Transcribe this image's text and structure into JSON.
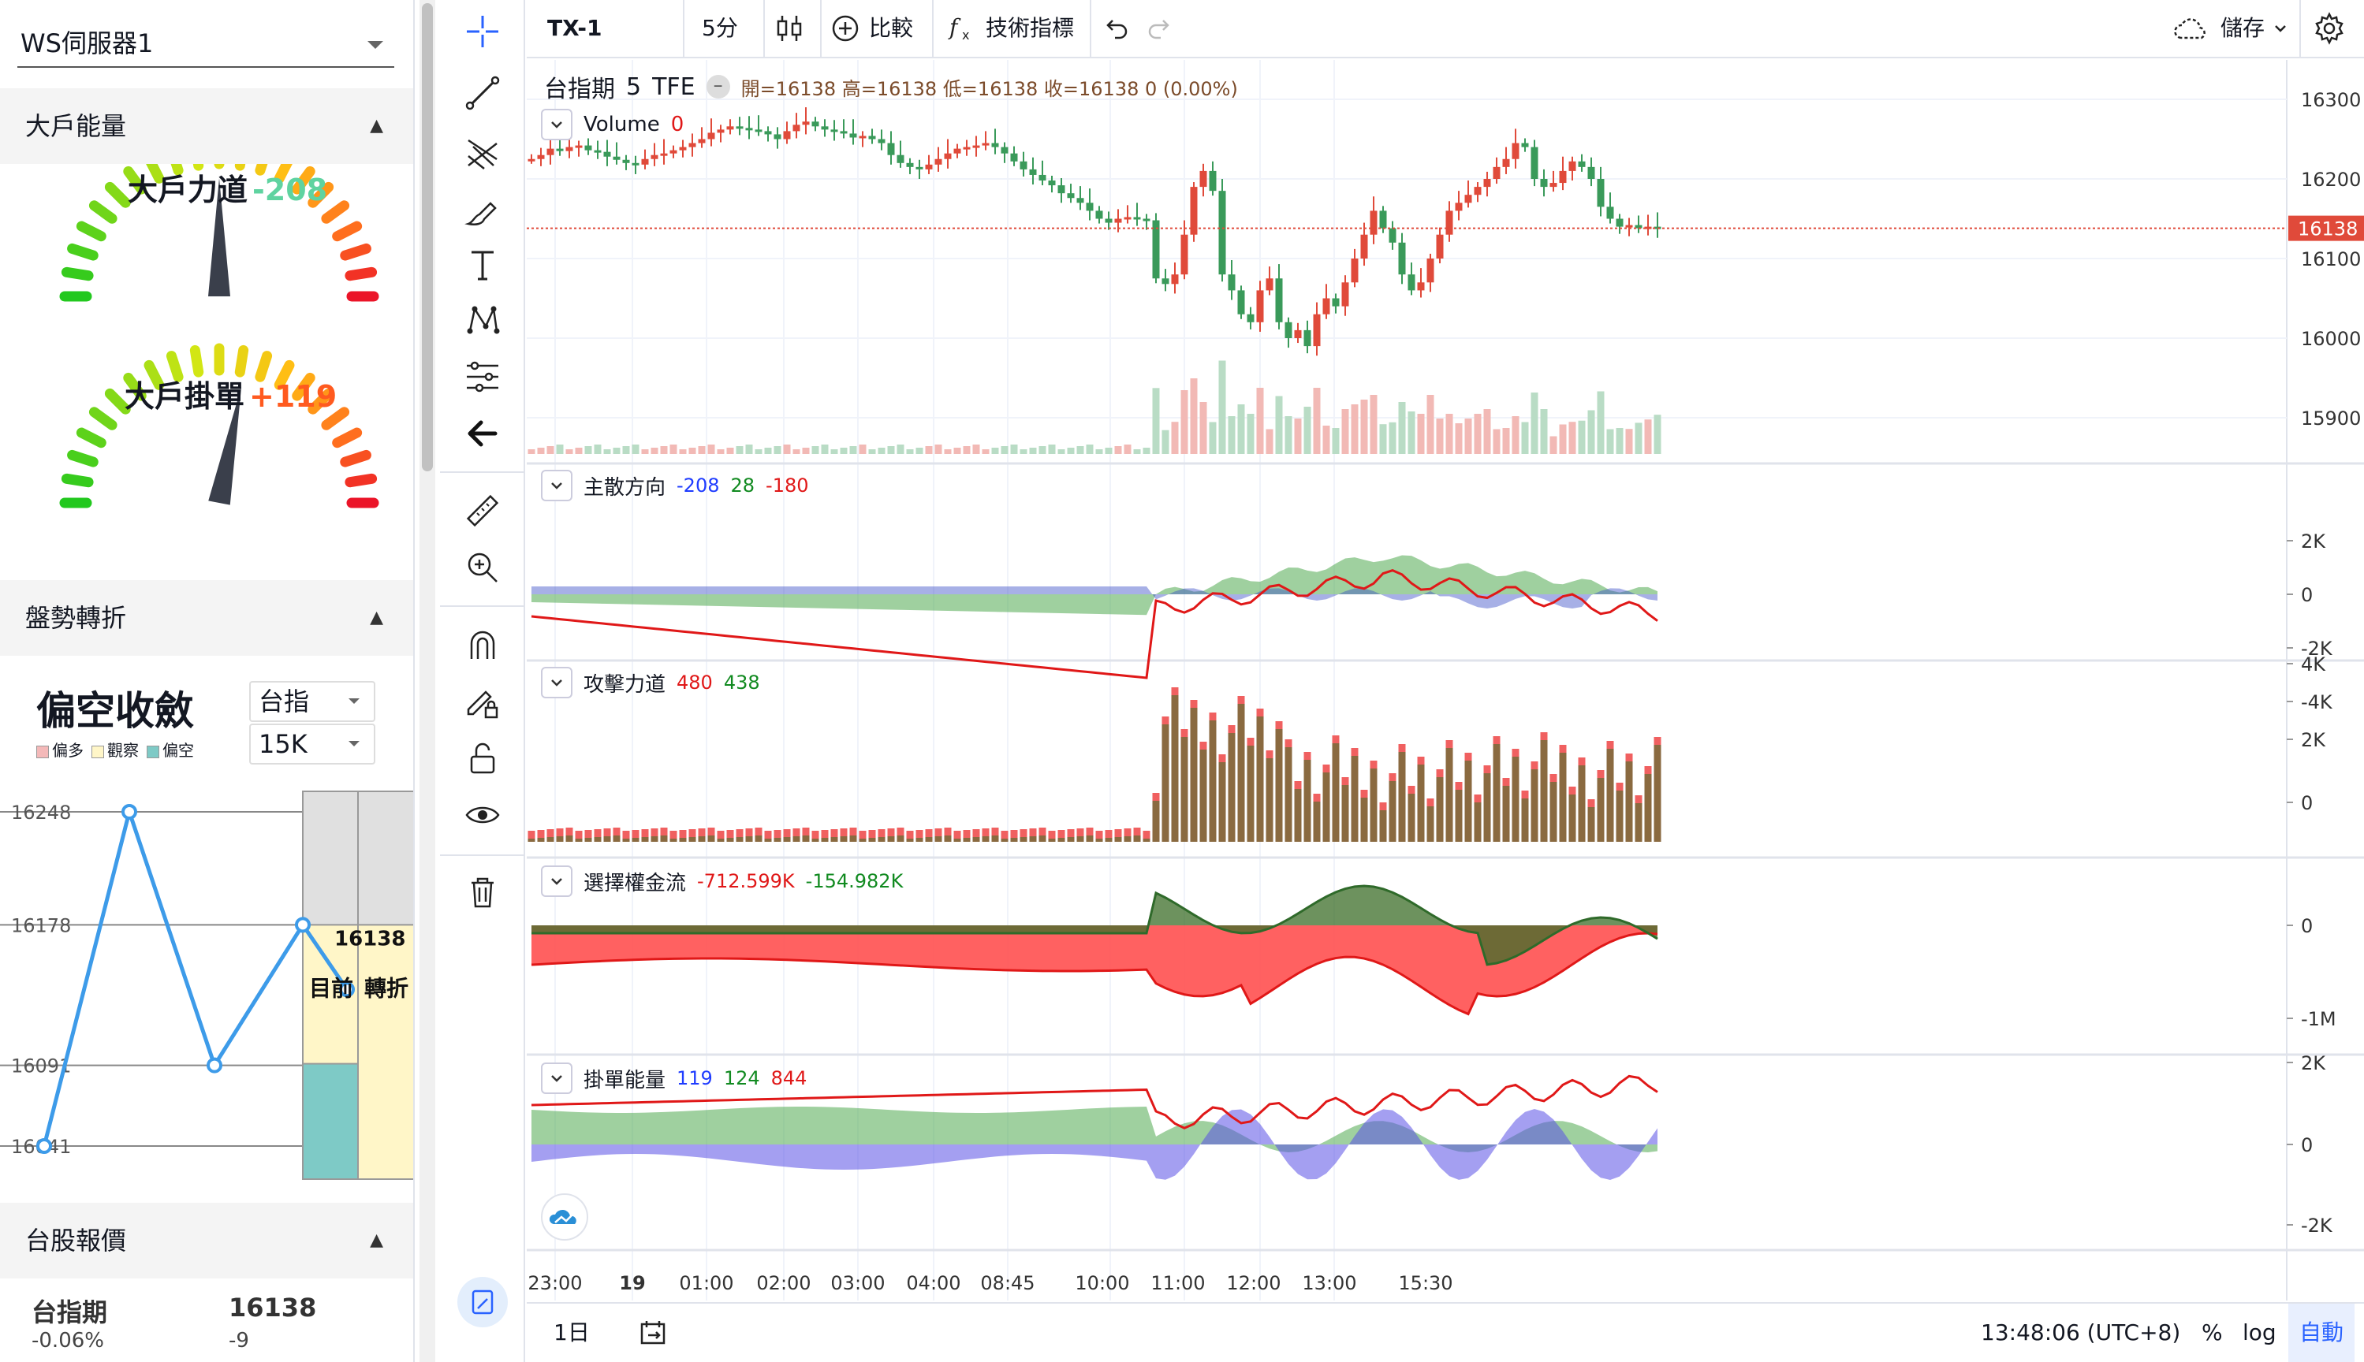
{
  "left_panel": {
    "server_select": "WS伺服器1",
    "section_big_player": "大戶能量",
    "gauge1": {
      "label": "大戶力道",
      "value": "-208",
      "value_color": "#5fd3a0",
      "needle_level": 0.5
    },
    "gauge2": {
      "label": "大戶掛單",
      "value": "+119",
      "value_color": "#ff5a1f",
      "needle_level": 0.56
    },
    "section_turning": "盤勢轉折",
    "bias_title": "偏空收斂",
    "legend": [
      {
        "label": "偏多",
        "color": "#f4b9b9"
      },
      {
        "label": "觀察",
        "color": "#fff6c8"
      },
      {
        "label": "偏空",
        "color": "#7ecac6"
      }
    ],
    "select_index": "台指",
    "select_amount": "15K",
    "turning_chart": {
      "y_ticks": [
        "16248",
        "16178",
        "16091",
        "16041"
      ],
      "points": [
        16041,
        16248,
        16091,
        16178,
        16138
      ],
      "current_price": "16138",
      "current_label": "目前",
      "turning_label": "轉折",
      "line_color": "#3d9be9"
    },
    "section_quote": "台股報價",
    "quote": {
      "name": "台指期",
      "change_pct": "-0.06%",
      "price": "16138",
      "diff": "-9"
    }
  },
  "toolbar": {
    "symbol": "TX-1",
    "interval": "5分",
    "compare_label": "比較",
    "indicators_label": "技術指標",
    "save_label": "儲存",
    "icons": [
      "candles-icon",
      "plus-circle-icon",
      "fx-icon",
      "undo-icon",
      "redo-icon",
      "cloud-icon",
      "gear-icon"
    ]
  },
  "drawing_tools": [
    "crosshair-icon",
    "trendline-icon",
    "pitchfork-icon",
    "brush-icon",
    "text-icon",
    "pattern-icon",
    "measure-lines-icon",
    "back-arrow-icon",
    "ruler-icon",
    "zoom-in-icon",
    "magnet-icon",
    "lock-pencil-icon",
    "unlock-icon",
    "eye-icon",
    "trash-icon",
    "panel-icon"
  ],
  "main_panel": {
    "title": "台指期",
    "interval": "5",
    "exchange": "TFE",
    "ohlc": "開=16138 高=16138 低=16138 收=16138 0 (0.00%)",
    "volume_label": "Volume",
    "volume_value": "0",
    "last_price": "16138",
    "y_ticks": [
      "16300",
      "16200",
      "16100",
      "16000",
      "15900"
    ]
  },
  "panels": [
    {
      "name": "主散方向",
      "values": [
        {
          "text": "-208",
          "color": "#1f3cff"
        },
        {
          "text": "28",
          "color": "#118a20"
        },
        {
          "text": "-180",
          "color": "#e01818"
        }
      ],
      "y_ticks": [
        "2K",
        "0",
        "-2K",
        "-4K"
      ]
    },
    {
      "name": "攻擊力道",
      "values": [
        {
          "text": "480",
          "color": "#e01818"
        },
        {
          "text": "438",
          "color": "#118a20"
        }
      ],
      "y_ticks": [
        "4K",
        "2K",
        "0"
      ]
    },
    {
      "name": "選擇權金流",
      "values": [
        {
          "text": "-712.599K",
          "color": "#e01818"
        },
        {
          "text": "-154.982K",
          "color": "#118a20"
        }
      ],
      "y_ticks": [
        "0",
        "-1M"
      ]
    },
    {
      "name": "掛單能量",
      "values": [
        {
          "text": "119",
          "color": "#1f3cff"
        },
        {
          "text": "124",
          "color": "#118a20"
        },
        {
          "text": "844",
          "color": "#e01818"
        }
      ],
      "y_ticks": [
        "2K",
        "0",
        "-2K"
      ]
    }
  ],
  "time_axis": [
    "23:00",
    "19",
    "01:00",
    "02:00",
    "03:00",
    "04:00",
    "08:45",
    "10:00",
    "11:00",
    "12:00",
    "13:00",
    "15:30"
  ],
  "bottom_bar": {
    "range": "1日",
    "clock": "13:48:06 (UTC+8)",
    "percent": "%",
    "log": "log",
    "auto": "自動"
  },
  "chart_data": {
    "type": "candlestick",
    "y_range": [
      15850,
      16330
    ],
    "last": 16138,
    "note_series": "main-panel closes approximated",
    "closes": [
      16225,
      16230,
      16238,
      16235,
      16240,
      16242,
      16236,
      16234,
      16228,
      16224,
      16220,
      16218,
      16225,
      16230,
      16232,
      16236,
      16240,
      16245,
      16250,
      16258,
      16262,
      16266,
      16264,
      16262,
      16260,
      16256,
      16250,
      16260,
      16268,
      16272,
      16266,
      16262,
      16260,
      16257,
      16252,
      16254,
      16250,
      16245,
      16230,
      16220,
      16215,
      16212,
      16218,
      16225,
      16232,
      16238,
      16240,
      16242,
      16245,
      16240,
      16232,
      16222,
      16212,
      16205,
      16198,
      16192,
      16182,
      16176,
      16170,
      16160,
      16150,
      16145,
      16150,
      16152,
      16150,
      16148,
      16075,
      16068,
      16080,
      16130,
      16190,
      16210,
      16185,
      16080,
      16060,
      16030,
      16020,
      16060,
      16075,
      16020,
      16000,
      16010,
      15990,
      16030,
      16050,
      16040,
      16070,
      16100,
      16130,
      16160,
      16138,
      16120,
      16080,
      16060,
      16070,
      16100,
      16130,
      16160,
      16170,
      16180,
      16190,
      16200,
      16215,
      16225,
      16245,
      16240,
      16200,
      16190,
      16195,
      16210,
      16222,
      16215,
      16200,
      16165,
      16150,
      16140,
      16142,
      16138,
      16140,
      16138
    ]
  }
}
